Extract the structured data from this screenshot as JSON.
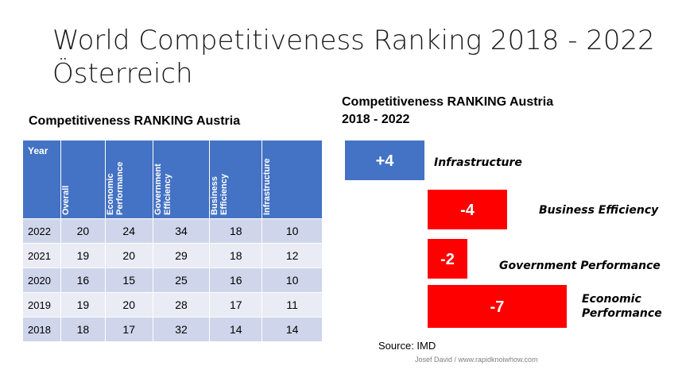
{
  "title": {
    "line1": "World Competitiveness Ranking 2018 - 2022",
    "line2": "Österreich"
  },
  "table": {
    "heading": "Competitiveness RANKING  Austria",
    "columns": [
      "Year",
      "Overall",
      "Economic Performance",
      "Government Efficiency",
      "Business Efficiency",
      "Infrastructure"
    ],
    "column_lines": [
      [
        "Overall"
      ],
      [
        "Economic",
        "Performance"
      ],
      [
        "Government",
        "Efficiency"
      ],
      [
        "Business",
        "Efficiency"
      ],
      [
        "Infrastructure"
      ]
    ],
    "rows": [
      [
        "2022",
        "20",
        "24",
        "34",
        "18",
        "10"
      ],
      [
        "2021",
        "19",
        "20",
        "29",
        "18",
        "12"
      ],
      [
        "2020",
        "16",
        "15",
        "25",
        "16",
        "10"
      ],
      [
        "2019",
        "19",
        "20",
        "28",
        "17",
        "11"
      ],
      [
        "2018",
        "18",
        "17",
        "32",
        "14",
        "14"
      ]
    ]
  },
  "chart_data": {
    "type": "bar",
    "title": "Competitiveness RANKING Austria",
    "subtitle": "2018 - 2022",
    "categories": [
      "Infrastructure",
      "Business Efficiency",
      "Government Performance",
      "Economic Performance"
    ],
    "values": [
      4,
      -4,
      -2,
      -7
    ],
    "labels": [
      "+4",
      "-4",
      "-2",
      "-7"
    ],
    "colors": [
      "#4472c4",
      "#ff0000",
      "#ff0000",
      "#ff0000"
    ]
  },
  "chart_heading": {
    "line1": "Competitiveness RANKING Austria",
    "line2": "2018 - 2022"
  },
  "source": "Source: IMD",
  "credit": "Josef David / www.rapidknoiwhow.com"
}
